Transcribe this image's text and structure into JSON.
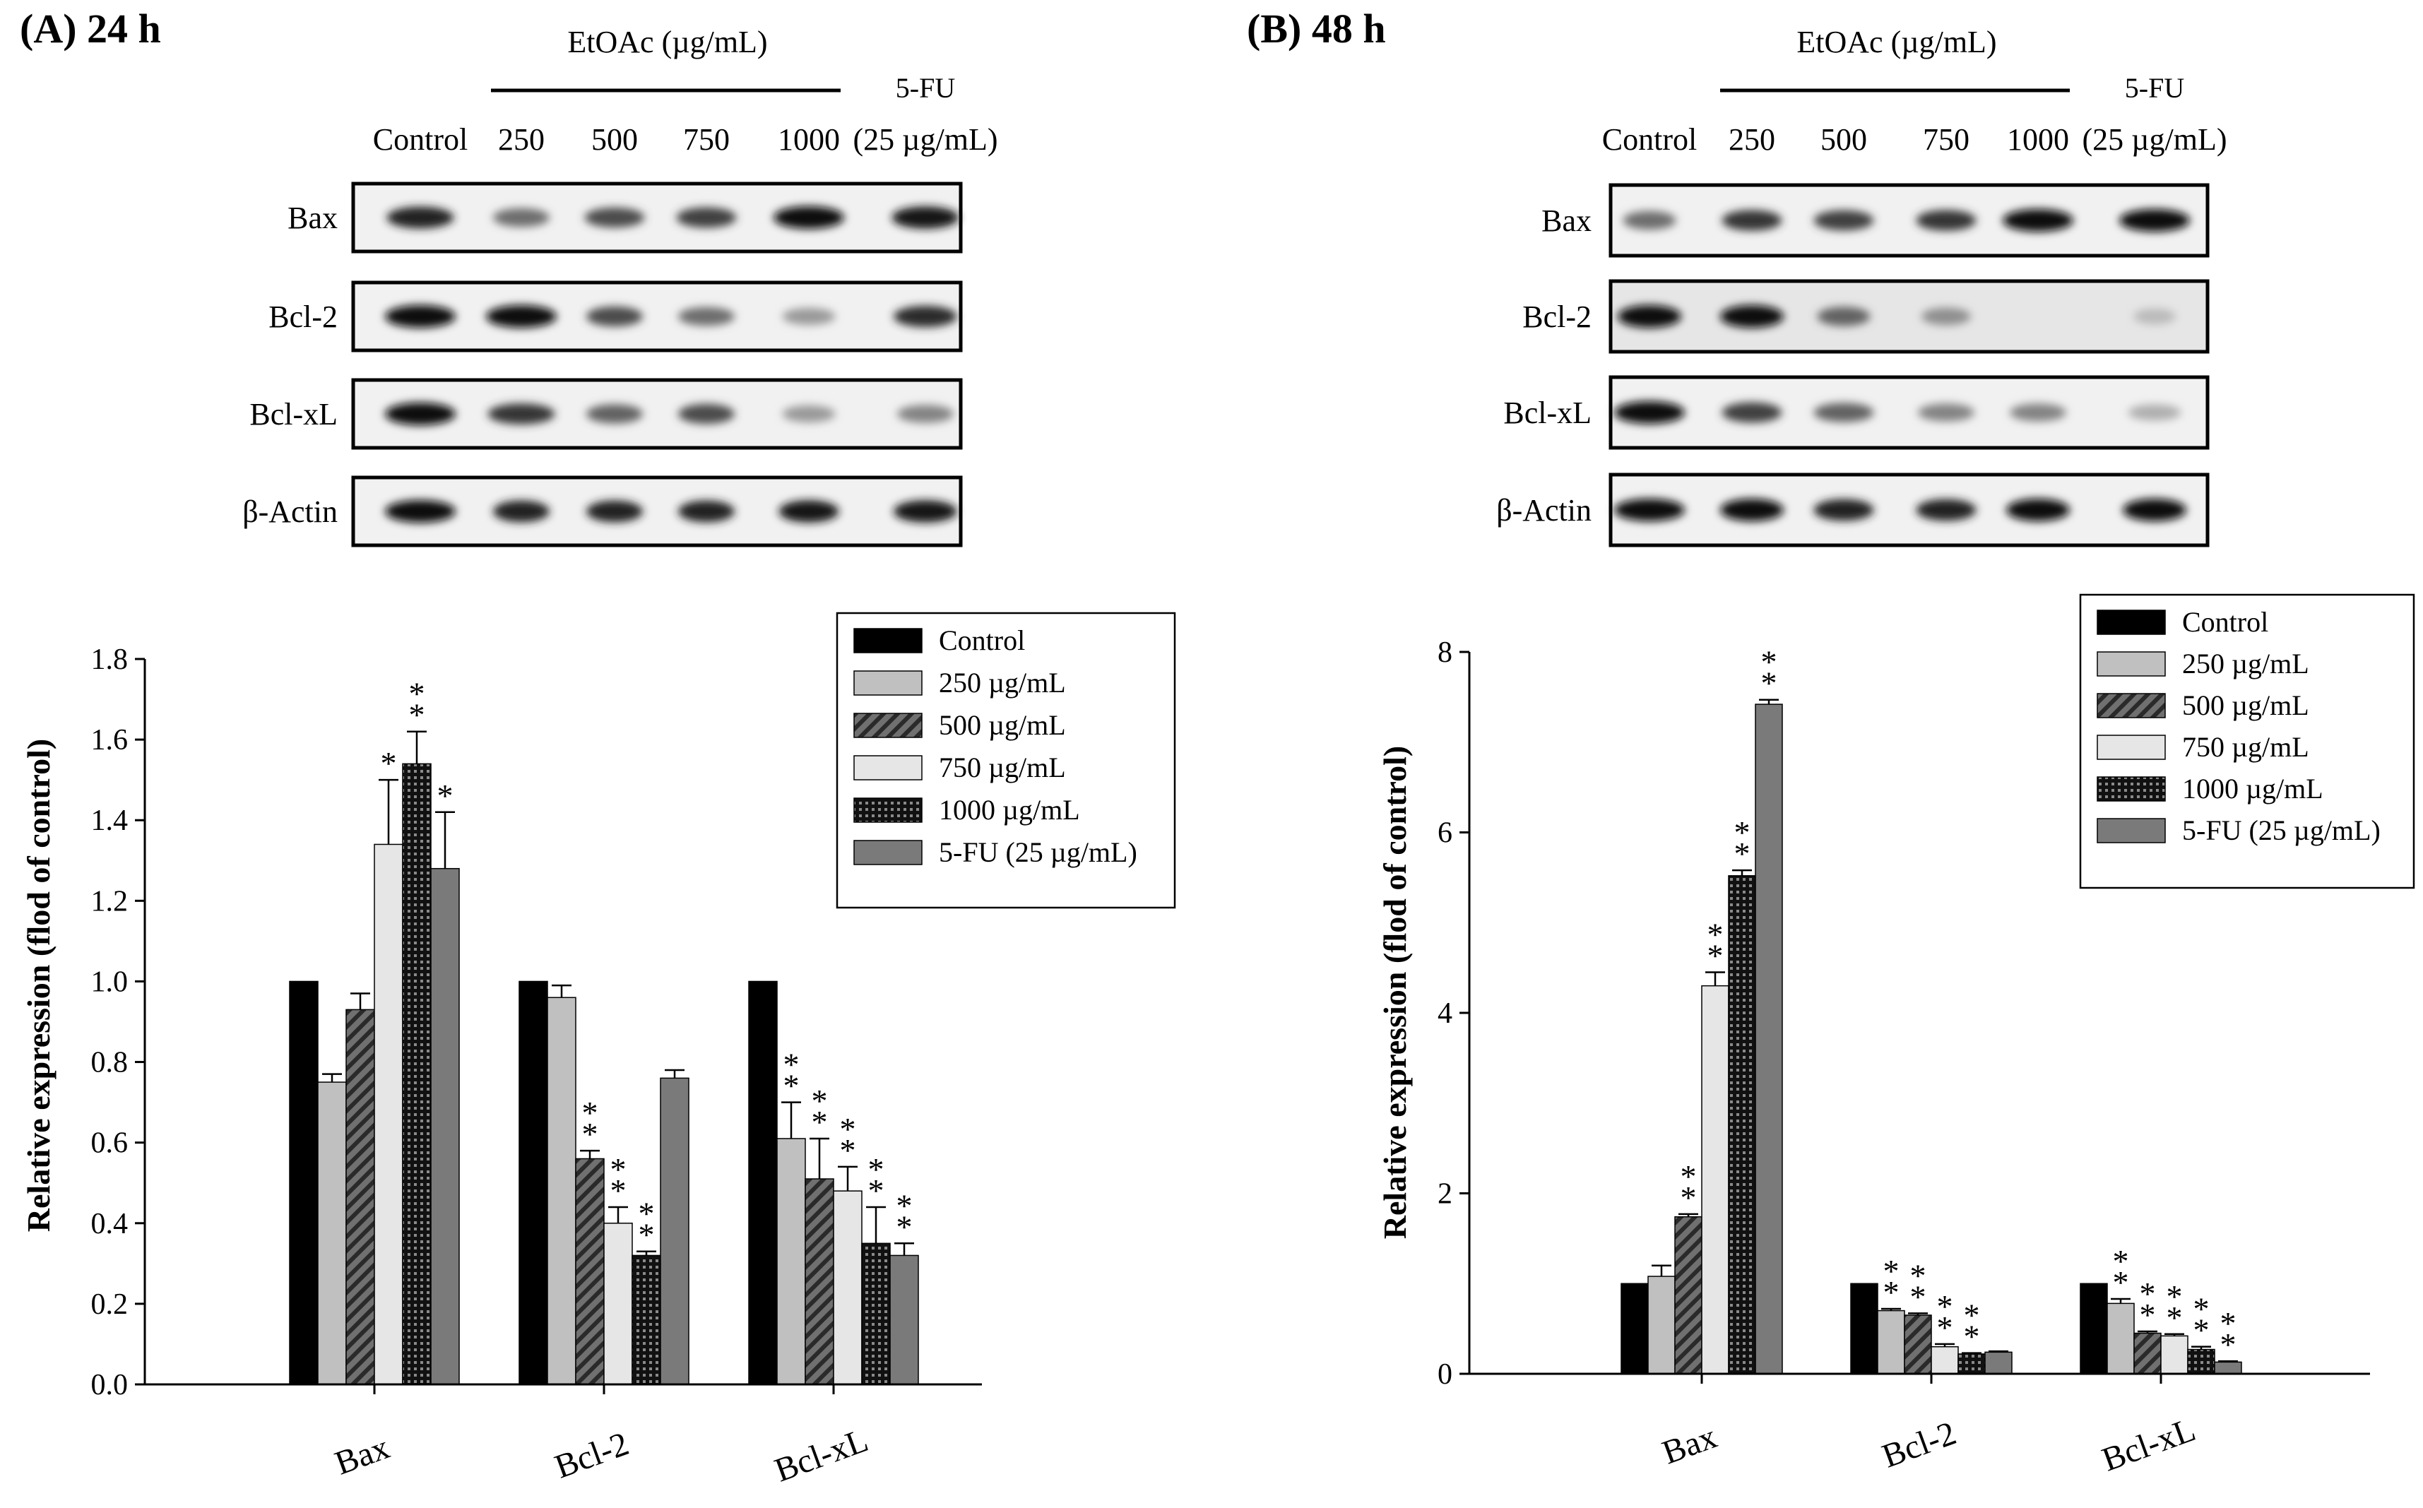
{
  "chart_data": [
    {
      "panel": "(A) 24 h",
      "type": "bar",
      "blot": {
        "header": "EtOAc (µg/mL)",
        "fu_top": "5-FU",
        "lanes": [
          "Control",
          "250",
          "500",
          "750",
          "1000",
          "(25 µg/mL)"
        ],
        "proteins": [
          "Bax",
          "Bcl-2",
          "Bcl-xL",
          "β-Actin"
        ]
      },
      "categories": [
        "Bax",
        "Bcl-2",
        "Bcl-xL"
      ],
      "ylabel": "Relative expression (flod of control)",
      "ylim": [
        0,
        1.8
      ],
      "yticks": [
        "0.0",
        "0.2",
        "0.4",
        "0.6",
        "0.8",
        "1.0",
        "1.2",
        "1.4",
        "1.6",
        "1.8"
      ],
      "series": [
        {
          "name": "Control",
          "values": [
            1.0,
            1.0,
            1.0
          ],
          "errors": [
            0,
            0,
            0
          ],
          "sig": [
            "",
            "",
            ""
          ]
        },
        {
          "name": "250 µg/mL",
          "values": [
            0.75,
            0.96,
            0.61
          ],
          "errors": [
            0.02,
            0.03,
            0.09
          ],
          "sig": [
            "",
            "",
            "**"
          ]
        },
        {
          "name": "500 µg/mL",
          "values": [
            0.93,
            0.56,
            0.51
          ],
          "errors": [
            0.04,
            0.02,
            0.1
          ],
          "sig": [
            "",
            "**",
            "**"
          ]
        },
        {
          "name": "750 µg/mL",
          "values": [
            1.34,
            0.4,
            0.48
          ],
          "errors": [
            0.16,
            0.04,
            0.06
          ],
          "sig": [
            "*",
            "**",
            "**"
          ]
        },
        {
          "name": "1000 µg/mL",
          "values": [
            1.54,
            0.32,
            0.35
          ],
          "errors": [
            0.08,
            0.01,
            0.09
          ],
          "sig": [
            "**",
            "**",
            "**"
          ]
        },
        {
          "name": "5-FU (25 µg/mL)",
          "values": [
            1.28,
            0.76,
            0.32
          ],
          "errors": [
            0.14,
            0.02,
            0.03
          ],
          "sig": [
            "*",
            "",
            "**"
          ]
        }
      ]
    },
    {
      "panel": "(B) 48 h",
      "type": "bar",
      "blot": {
        "header": "EtOAc (µg/mL)",
        "fu_top": "5-FU",
        "lanes": [
          "Control",
          "250",
          "500",
          "750",
          "1000",
          "(25 µg/mL)"
        ],
        "proteins": [
          "Bax",
          "Bcl-2",
          "Bcl-xL",
          "β-Actin"
        ]
      },
      "categories": [
        "Bax",
        "Bcl-2",
        "Bcl-xL"
      ],
      "ylabel": "Relative expression (flod of control)",
      "ylim": [
        0,
        8
      ],
      "yticks": [
        "0",
        "2",
        "4",
        "6",
        "8"
      ],
      "series": [
        {
          "name": "Control",
          "values": [
            1.0,
            1.0,
            1.0
          ],
          "errors": [
            0,
            0,
            0
          ],
          "sig": [
            "",
            "",
            ""
          ]
        },
        {
          "name": "250 µg/mL",
          "values": [
            1.08,
            0.7,
            0.78
          ],
          "errors": [
            0.12,
            0.02,
            0.05
          ],
          "sig": [
            "",
            "**",
            "**"
          ]
        },
        {
          "name": "500 µg/mL",
          "values": [
            1.74,
            0.65,
            0.45
          ],
          "errors": [
            0.03,
            0.02,
            0.02
          ],
          "sig": [
            "**",
            "**",
            "**"
          ]
        },
        {
          "name": "750 µg/mL",
          "values": [
            4.3,
            0.3,
            0.42
          ],
          "errors": [
            0.15,
            0.03,
            0.02
          ],
          "sig": [
            "**",
            "**",
            "**"
          ]
        },
        {
          "name": "1000 µg/mL",
          "values": [
            5.52,
            0.22,
            0.27
          ],
          "errors": [
            0.06,
            0.01,
            0.03
          ],
          "sig": [
            "**",
            "**",
            "**"
          ]
        },
        {
          "name": "5-FU (25 µg/mL)",
          "values": [
            7.42,
            0.24,
            0.13
          ],
          "errors": [
            0.05,
            0.01,
            0.01
          ],
          "sig": [
            "**",
            "",
            "**"
          ]
        }
      ]
    }
  ]
}
